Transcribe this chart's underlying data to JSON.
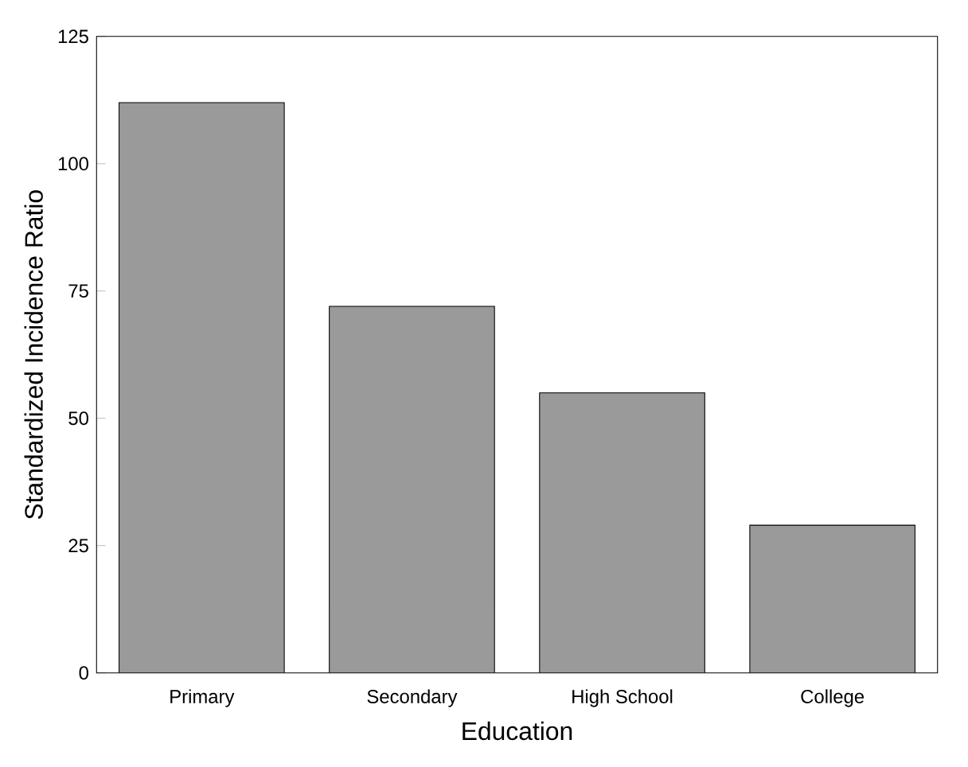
{
  "chart_data": {
    "type": "bar",
    "xlabel": "Education",
    "ylabel": "Standardized Incidence Ratio",
    "categories": [
      "Primary",
      "Secondary",
      "High School",
      "College"
    ],
    "values": [
      112,
      72,
      55,
      29
    ],
    "color": "#9a9a9a",
    "ylim": [
      0,
      125
    ],
    "yticks": [
      0,
      25,
      50,
      75,
      100,
      125
    ],
    "grid": false
  }
}
